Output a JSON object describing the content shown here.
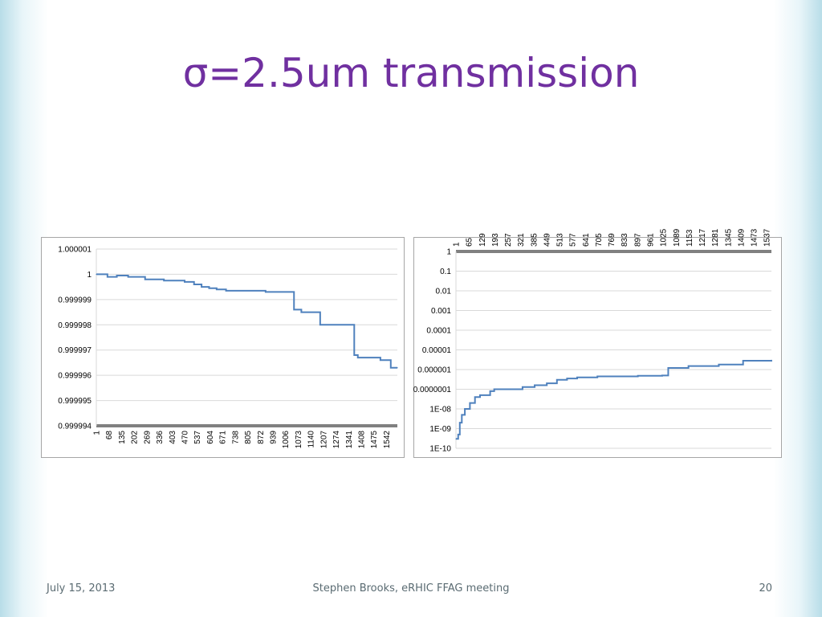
{
  "slide": {
    "title": "σ=2.5um transmission",
    "footer_date": "July 15, 2013",
    "footer_center": "Stephen Brooks, eRHIC FFAG meeting",
    "page_number": "20"
  },
  "colors": {
    "title": "#7030a0",
    "series": "#4f81bd",
    "gridline": "#d9d9d9",
    "axis_bar": "#808080"
  },
  "chart_data": [
    {
      "type": "line",
      "title": "",
      "xlabel": "",
      "ylabel": "",
      "y_scale": "linear",
      "ylim": [
        0.999994,
        1.000001
      ],
      "y_ticks": [
        "1.000001",
        "1",
        "0.999999",
        "0.999998",
        "0.999997",
        "0.999996",
        "0.999995",
        "0.999994"
      ],
      "y_tick_values": [
        1.000001,
        1.0,
        0.999999,
        0.999998,
        0.999997,
        0.999996,
        0.999995,
        0.999994
      ],
      "xlim": [
        1,
        1600
      ],
      "x_ticks": [
        "1",
        "68",
        "135",
        "202",
        "269",
        "336",
        "403",
        "470",
        "537",
        "604",
        "671",
        "738",
        "805",
        "872",
        "939",
        "1006",
        "1073",
        "1140",
        "1207",
        "1274",
        "1341",
        "1408",
        "1475",
        "1542"
      ],
      "x_tick_values": [
        1,
        68,
        135,
        202,
        269,
        336,
        403,
        470,
        537,
        604,
        671,
        738,
        805,
        872,
        939,
        1006,
        1073,
        1140,
        1207,
        1274,
        1341,
        1408,
        1475,
        1542
      ],
      "grid": true,
      "legend": "none",
      "series": [
        {
          "x": [
            1,
            60,
            110,
            170,
            260,
            360,
            470,
            520,
            560,
            600,
            640,
            690,
            780,
            900,
            1050,
            1051,
            1090,
            1190,
            1370,
            1371,
            1390,
            1510,
            1565,
            1600
          ],
          "y": [
            1.0,
            0.9999999,
            0.99999995,
            0.9999999,
            0.9999998,
            0.99999975,
            0.9999997,
            0.9999996,
            0.9999995,
            0.99999945,
            0.9999994,
            0.99999935,
            0.99999935,
            0.9999993,
            0.9999993,
            0.9999986,
            0.9999985,
            0.999998,
            0.999998,
            0.9999968,
            0.9999967,
            0.9999966,
            0.9999963,
            0.9999963
          ]
        }
      ]
    },
    {
      "type": "line",
      "title": "",
      "xlabel": "",
      "ylabel": "",
      "y_scale": "log",
      "ylim": [
        1e-10,
        1
      ],
      "y_ticks": [
        "1",
        "0.1",
        "0.01",
        "0.001",
        "0.0001",
        "0.00001",
        "0.000001",
        "0.0000001",
        "1E-08",
        "1E-09",
        "1E-10"
      ],
      "y_tick_values": [
        1,
        0.1,
        0.01,
        0.001,
        0.0001,
        1e-05,
        1e-06,
        1e-07,
        1e-08,
        1e-09,
        1e-10
      ],
      "xlim": [
        1,
        1560
      ],
      "x_ticks": [
        "1",
        "65",
        "129",
        "193",
        "257",
        "321",
        "385",
        "449",
        "513",
        "577",
        "641",
        "705",
        "769",
        "833",
        "897",
        "961",
        "1025",
        "1089",
        "1153",
        "1217",
        "1281",
        "1345",
        "1409",
        "1473",
        "1537"
      ],
      "x_tick_values": [
        1,
        65,
        129,
        193,
        257,
        321,
        385,
        449,
        513,
        577,
        641,
        705,
        769,
        833,
        897,
        961,
        1025,
        1089,
        1153,
        1217,
        1281,
        1345,
        1409,
        1473,
        1537
      ],
      "grid": true,
      "legend": "none",
      "series": [
        {
          "x": [
            1,
            12,
            20,
            30,
            45,
            70,
            95,
            120,
            170,
            190,
            270,
            330,
            390,
            450,
            500,
            550,
            600,
            700,
            900,
            1020,
            1050,
            1150,
            1300,
            1380,
            1420,
            1560
          ],
          "y": [
            3e-10,
            5e-10,
            2e-09,
            5e-09,
            1e-08,
            2e-08,
            4e-08,
            5e-08,
            8e-08,
            1e-07,
            1e-07,
            1.3e-07,
            1.6e-07,
            2e-07,
            3e-07,
            3.5e-07,
            4e-07,
            4.5e-07,
            4.8e-07,
            5e-07,
            1.2e-06,
            1.5e-06,
            1.8e-06,
            1.8e-06,
            2.8e-06,
            3e-06
          ]
        }
      ]
    }
  ]
}
